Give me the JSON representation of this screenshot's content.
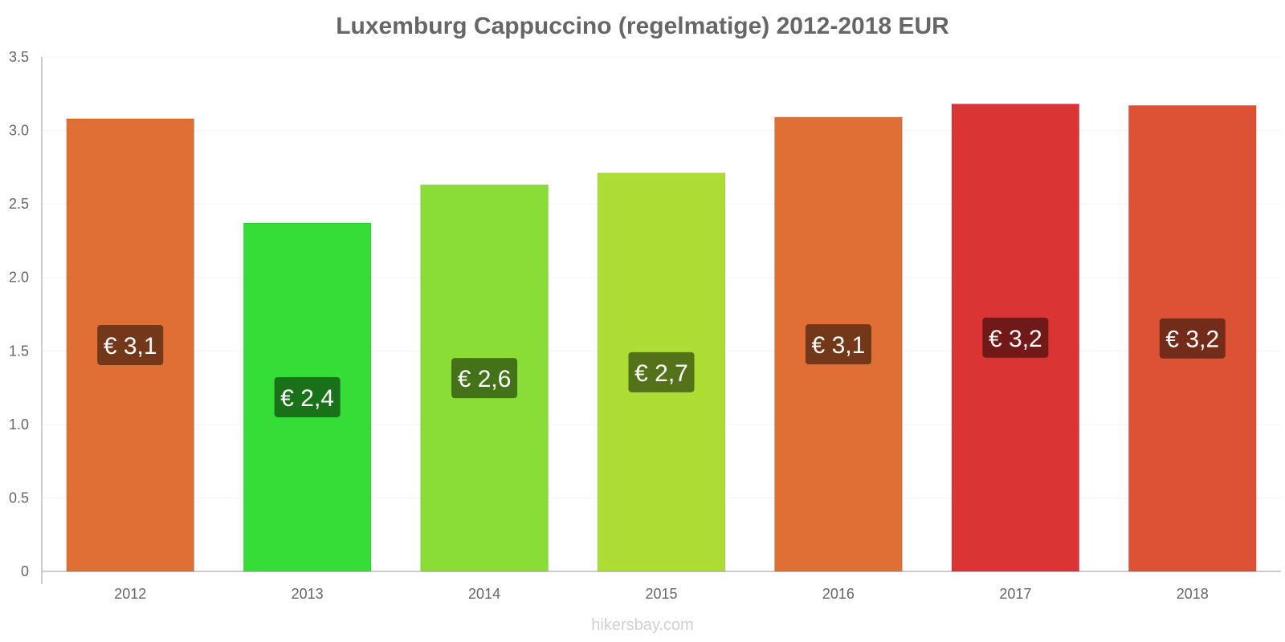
{
  "title": "Luxemburg Cappuccino (regelmatige) 2012-2018 EUR",
  "watermark": "hikersbay.com",
  "chart_data": {
    "type": "bar",
    "title": "Luxemburg Cappuccino (regelmatige) 2012-2018 EUR",
    "categories": [
      "2012",
      "2013",
      "2014",
      "2015",
      "2016",
      "2017",
      "2018"
    ],
    "values": [
      3.08,
      2.37,
      2.63,
      2.71,
      3.09,
      3.18,
      3.17
    ],
    "data_labels": [
      "€ 3,1",
      "€ 2,4",
      "€ 2,6",
      "€ 2,7",
      "€ 3,1",
      "€ 3,2",
      "€ 3,2"
    ],
    "bar_colors": [
      "#df6f35",
      "#36dd36",
      "#89dd36",
      "#addd34",
      "#df6f35",
      "#db3434",
      "#dd5134"
    ],
    "label_bg_colors": [
      "#6b3518",
      "#186b18",
      "#3f6b18",
      "#4f6b18",
      "#6b3518",
      "#6b1818",
      "#6b2a18"
    ],
    "xlabel": "",
    "ylabel": "",
    "ylim": [
      0,
      3.5
    ],
    "yticks": [
      "0",
      "0.5",
      "1.0",
      "1.5",
      "2.0",
      "2.5",
      "3.0",
      "3.5"
    ],
    "grid": true,
    "legend": "none"
  }
}
